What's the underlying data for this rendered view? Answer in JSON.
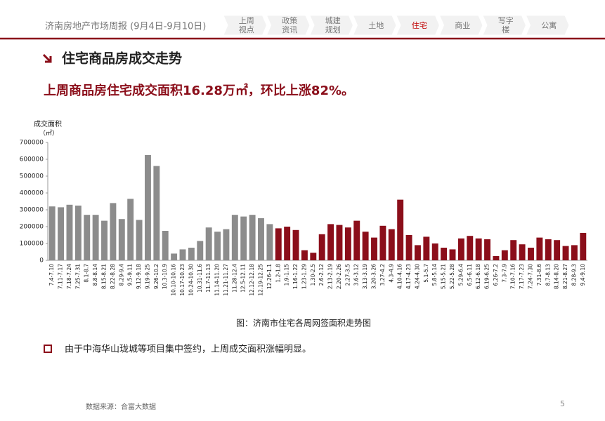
{
  "header": {
    "title": "济南房地产市场周报 (9月4日-9月10日)",
    "nav": [
      [
        "上周",
        "视点"
      ],
      [
        "政策",
        "资讯"
      ],
      [
        "城建",
        "规划"
      ],
      [
        "土地"
      ],
      [
        "住宅"
      ],
      [
        "商业"
      ],
      [
        "写字",
        "楼"
      ],
      [
        "公寓"
      ]
    ],
    "active": 4
  },
  "section_title": "住宅商品房成交走势",
  "headline": "上周商品房住宅成交面积16.28万㎡，环比上涨82%。",
  "chart_data": {
    "type": "bar",
    "y_label": [
      "成交面积",
      "（㎡）"
    ],
    "caption": "图：济南市住宅各周网签面积走势图",
    "categories": [
      "7.4-7.10",
      "7.11-7.17",
      "7.18-7.24",
      "7.25-7.31",
      "8.1-8.7",
      "8.8-8.14",
      "8.15-8.21",
      "8.22-8.28",
      "8.29-9.4",
      "9.5-9.11",
      "9.12-9.18",
      "9.19-9.25",
      "9.26-10.2",
      "10.3-10.9",
      "10.10-10.16",
      "10.17-10.23",
      "10.24-10.30",
      "10.31-11.6",
      "11.7-11.13",
      "11.14-11.20",
      "11.21-11.27",
      "11.28-12.4",
      "12.5-12.11",
      "12.12-12.18",
      "12.19-12.25",
      "12.26-1.1",
      "1.2-1.8",
      "1.9-1.15",
      "1.16-1.22",
      "1.23-1.29",
      "1.30-2.5",
      "2.6-2.12",
      "2.13-2.19",
      "2.20-2.26",
      "2.27-3.5",
      "3.6-3.12",
      "3.13-3.19",
      "3.20-3.26",
      "3.27-4.2",
      "4.3-4.9",
      "4.10-4.16",
      "4.17-4.23",
      "4.24-4.30",
      "5.1-5.7",
      "5.8-5.14",
      "5.15-5.21",
      "5.22-5.28",
      "5.29-6.4",
      "6.5-6.11",
      "6.12-6.18",
      "6.19-6.25",
      "6.26-7.2",
      "7.3-7.9",
      "7.10-7.16",
      "7.17-7.23",
      "7.24-7.30",
      "7.31-8.6",
      "8.7-8.13",
      "8.14-8.20",
      "8.21-8.27",
      "8.28-9.3",
      "9.4-9.10"
    ],
    "series": [
      {
        "color": "#8c8c8c",
        "values": [
          320000,
          315000,
          330000,
          325000,
          270000,
          270000,
          235000,
          340000,
          245000,
          365000,
          240000,
          625000,
          560000,
          175000,
          40000,
          65000,
          75000,
          115000,
          195000,
          170000,
          185000,
          270000,
          260000,
          270000,
          250000,
          215000,
          null,
          null,
          null,
          null,
          null,
          null,
          null,
          null,
          null,
          null,
          null,
          null,
          null,
          null,
          null,
          null,
          null,
          null,
          null,
          null,
          null,
          null,
          null,
          null,
          null,
          null,
          null,
          null,
          null,
          null,
          null,
          null,
          null,
          null,
          null,
          null
        ]
      },
      {
        "color": "#8b0e1a",
        "values": [
          null,
          null,
          null,
          null,
          null,
          null,
          null,
          null,
          null,
          null,
          null,
          null,
          null,
          null,
          null,
          null,
          null,
          null,
          null,
          null,
          null,
          null,
          null,
          null,
          null,
          null,
          190000,
          200000,
          180000,
          60000,
          45000,
          155000,
          215000,
          210000,
          195000,
          235000,
          170000,
          135000,
          205000,
          185000,
          360000,
          150000,
          90000,
          140000,
          100000,
          75000,
          65000,
          130000,
          145000,
          130000,
          125000,
          25000,
          60000,
          120000,
          95000,
          75000,
          135000,
          125000,
          120000,
          85000,
          90000,
          162800
        ]
      }
    ],
    "ylim": [
      0,
      700000
    ],
    "yticks": [
      0,
      100000,
      200000,
      300000,
      400000,
      500000,
      600000,
      700000
    ]
  },
  "bullet": "由于中海华山珑城等项目集中签约，上周成交面积涨幅明显。",
  "source": "数据来源：合富大数据",
  "page": "5"
}
